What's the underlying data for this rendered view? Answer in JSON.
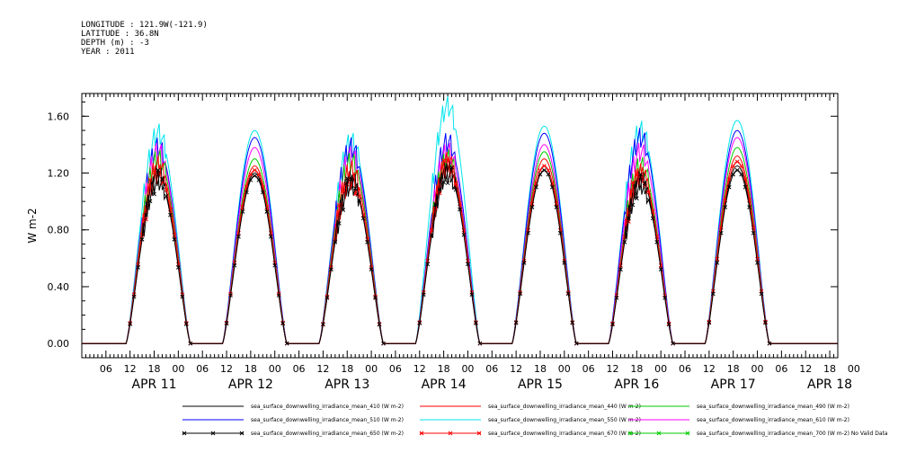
{
  "header": {
    "longitude": "LONGITUDE : 121.9W(-121.9)",
    "latitude": "LATITUDE : 36.8N",
    "depth": "DEPTH (m) : -3",
    "year": "YEAR : 2011"
  },
  "chart_data": {
    "type": "line",
    "ylabel": "W m-2",
    "ylim": [
      -0.1,
      1.76
    ],
    "y_ticks": [
      "0.00",
      "0.40",
      "0.80",
      "1.20",
      "1.60"
    ],
    "y_tick_values": [
      0.0,
      0.4,
      0.8,
      1.2,
      1.6
    ],
    "x_range_hours": [
      0,
      188
    ],
    "x_hour_ticks": [
      "06",
      "12",
      "18",
      "00",
      "06",
      "12",
      "18",
      "00",
      "06",
      "12",
      "18",
      "00",
      "06",
      "12",
      "18",
      "00",
      "06",
      "12",
      "18",
      "00",
      "06",
      "12",
      "18",
      "00",
      "06",
      "12",
      "18",
      "00",
      "06",
      "12",
      "18",
      "00"
    ],
    "x_date_labels": [
      "APR 11",
      "APR 12",
      "APR 13",
      "APR 14",
      "APR 15",
      "APR 16",
      "APR 17",
      "APR 18"
    ],
    "grid": false,
    "legend_position": "bottom",
    "day_peaks": {
      "x": [
        "APR 11",
        "APR 12",
        "APR 13",
        "APR 14",
        "APR 15",
        "APR 16",
        "APR 17"
      ],
      "mean_410": [
        1.18,
        1.2,
        1.15,
        1.22,
        1.25,
        1.15,
        1.25
      ],
      "mean_440": [
        1.25,
        1.25,
        1.22,
        1.28,
        1.3,
        1.2,
        1.32
      ],
      "mean_490": [
        1.3,
        1.3,
        1.28,
        1.3,
        1.35,
        1.25,
        1.38
      ],
      "mean_510": [
        1.38,
        1.45,
        1.38,
        1.42,
        1.48,
        1.45,
        1.5
      ],
      "mean_550": [
        1.48,
        1.5,
        1.42,
        1.67,
        1.53,
        1.5,
        1.57
      ],
      "mean_610": [
        1.35,
        1.38,
        1.32,
        1.35,
        1.4,
        1.35,
        1.45
      ],
      "mean_650": [
        1.15,
        1.18,
        1.12,
        1.2,
        1.22,
        1.12,
        1.22
      ],
      "mean_670": [
        1.2,
        1.22,
        1.15,
        1.25,
        1.25,
        1.18,
        1.28
      ]
    },
    "series": [
      {
        "name": "sea_surface_downwelling_irradiance_mean_410 (W m-2)",
        "color": "#000000",
        "marker": "none"
      },
      {
        "name": "sea_surface_downwelling_irradiance_mean_440 (W m-2)",
        "color": "#ff0000",
        "marker": "none"
      },
      {
        "name": "sea_surface_downwelling_irradiance_mean_490 (W m-2)",
        "color": "#00cc00",
        "marker": "none"
      },
      {
        "name": "sea_surface_downwelling_irradiance_mean_510 (W m-2)",
        "color": "#0000ff",
        "marker": "none"
      },
      {
        "name": "sea_surface_downwelling_irradiance_mean_550 (W m-2)",
        "color": "#00e5ee",
        "marker": "none"
      },
      {
        "name": "sea_surface_downwelling_irradiance_mean_610 (W m-2)",
        "color": "#ff00ff",
        "marker": "none"
      },
      {
        "name": "sea_surface_downwelling_irradiance_mean_650 (W m-2)",
        "color": "#000000",
        "marker": "x"
      },
      {
        "name": "sea_surface_downwelling_irradiance_mean_670 (W m-2)",
        "color": "#ff0000",
        "marker": "x"
      },
      {
        "name": "sea_surface_downwelling_irradiance_mean_700 (W m-2) No Valid Data",
        "color": "#00cc00",
        "marker": "x"
      }
    ]
  }
}
